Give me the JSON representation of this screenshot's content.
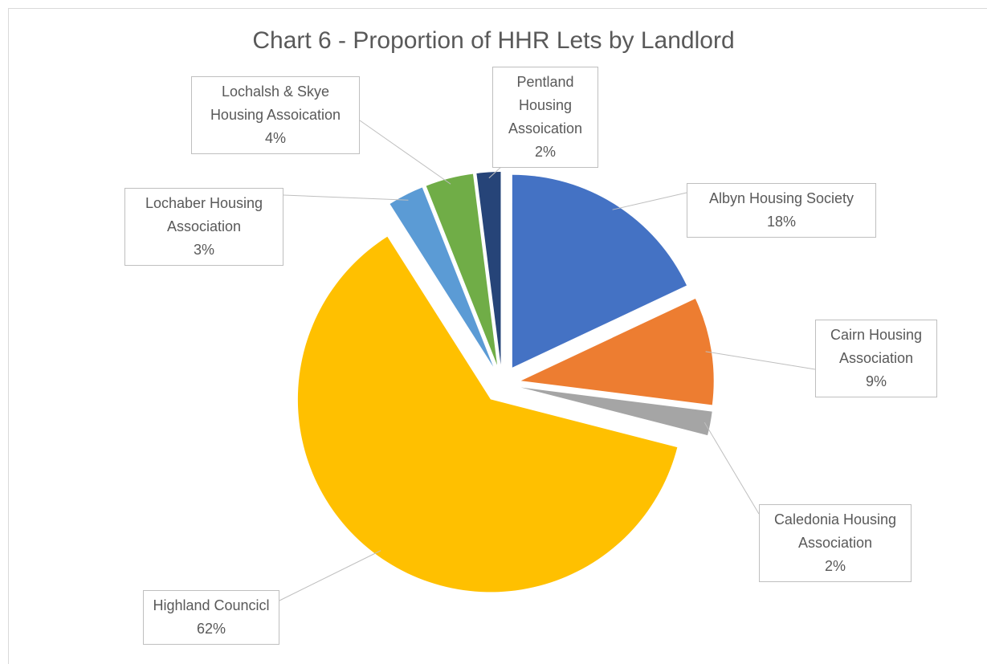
{
  "chart_data": {
    "type": "pie",
    "title": "Chart 6 - Proportion of HHR Lets by Landlord",
    "categories": [
      "Albyn Housing Society",
      "Cairn Housing Association",
      "Caledonia Housing Association",
      "Highland Councicl",
      "Lochaber Housing Association",
      "Lochalsh & Skye Housing Assoication",
      "Pentland Housing Assoication"
    ],
    "values": [
      18,
      9,
      2,
      62,
      3,
      4,
      2
    ],
    "value_labels": [
      "18%",
      "9%",
      "2%",
      "62%",
      "3%",
      "4%",
      "2%"
    ],
    "colors": [
      "#4472c4",
      "#ed7d31",
      "#a5a5a5",
      "#ffc000",
      "#5b9bd5",
      "#70ad47",
      "#264478"
    ]
  }
}
